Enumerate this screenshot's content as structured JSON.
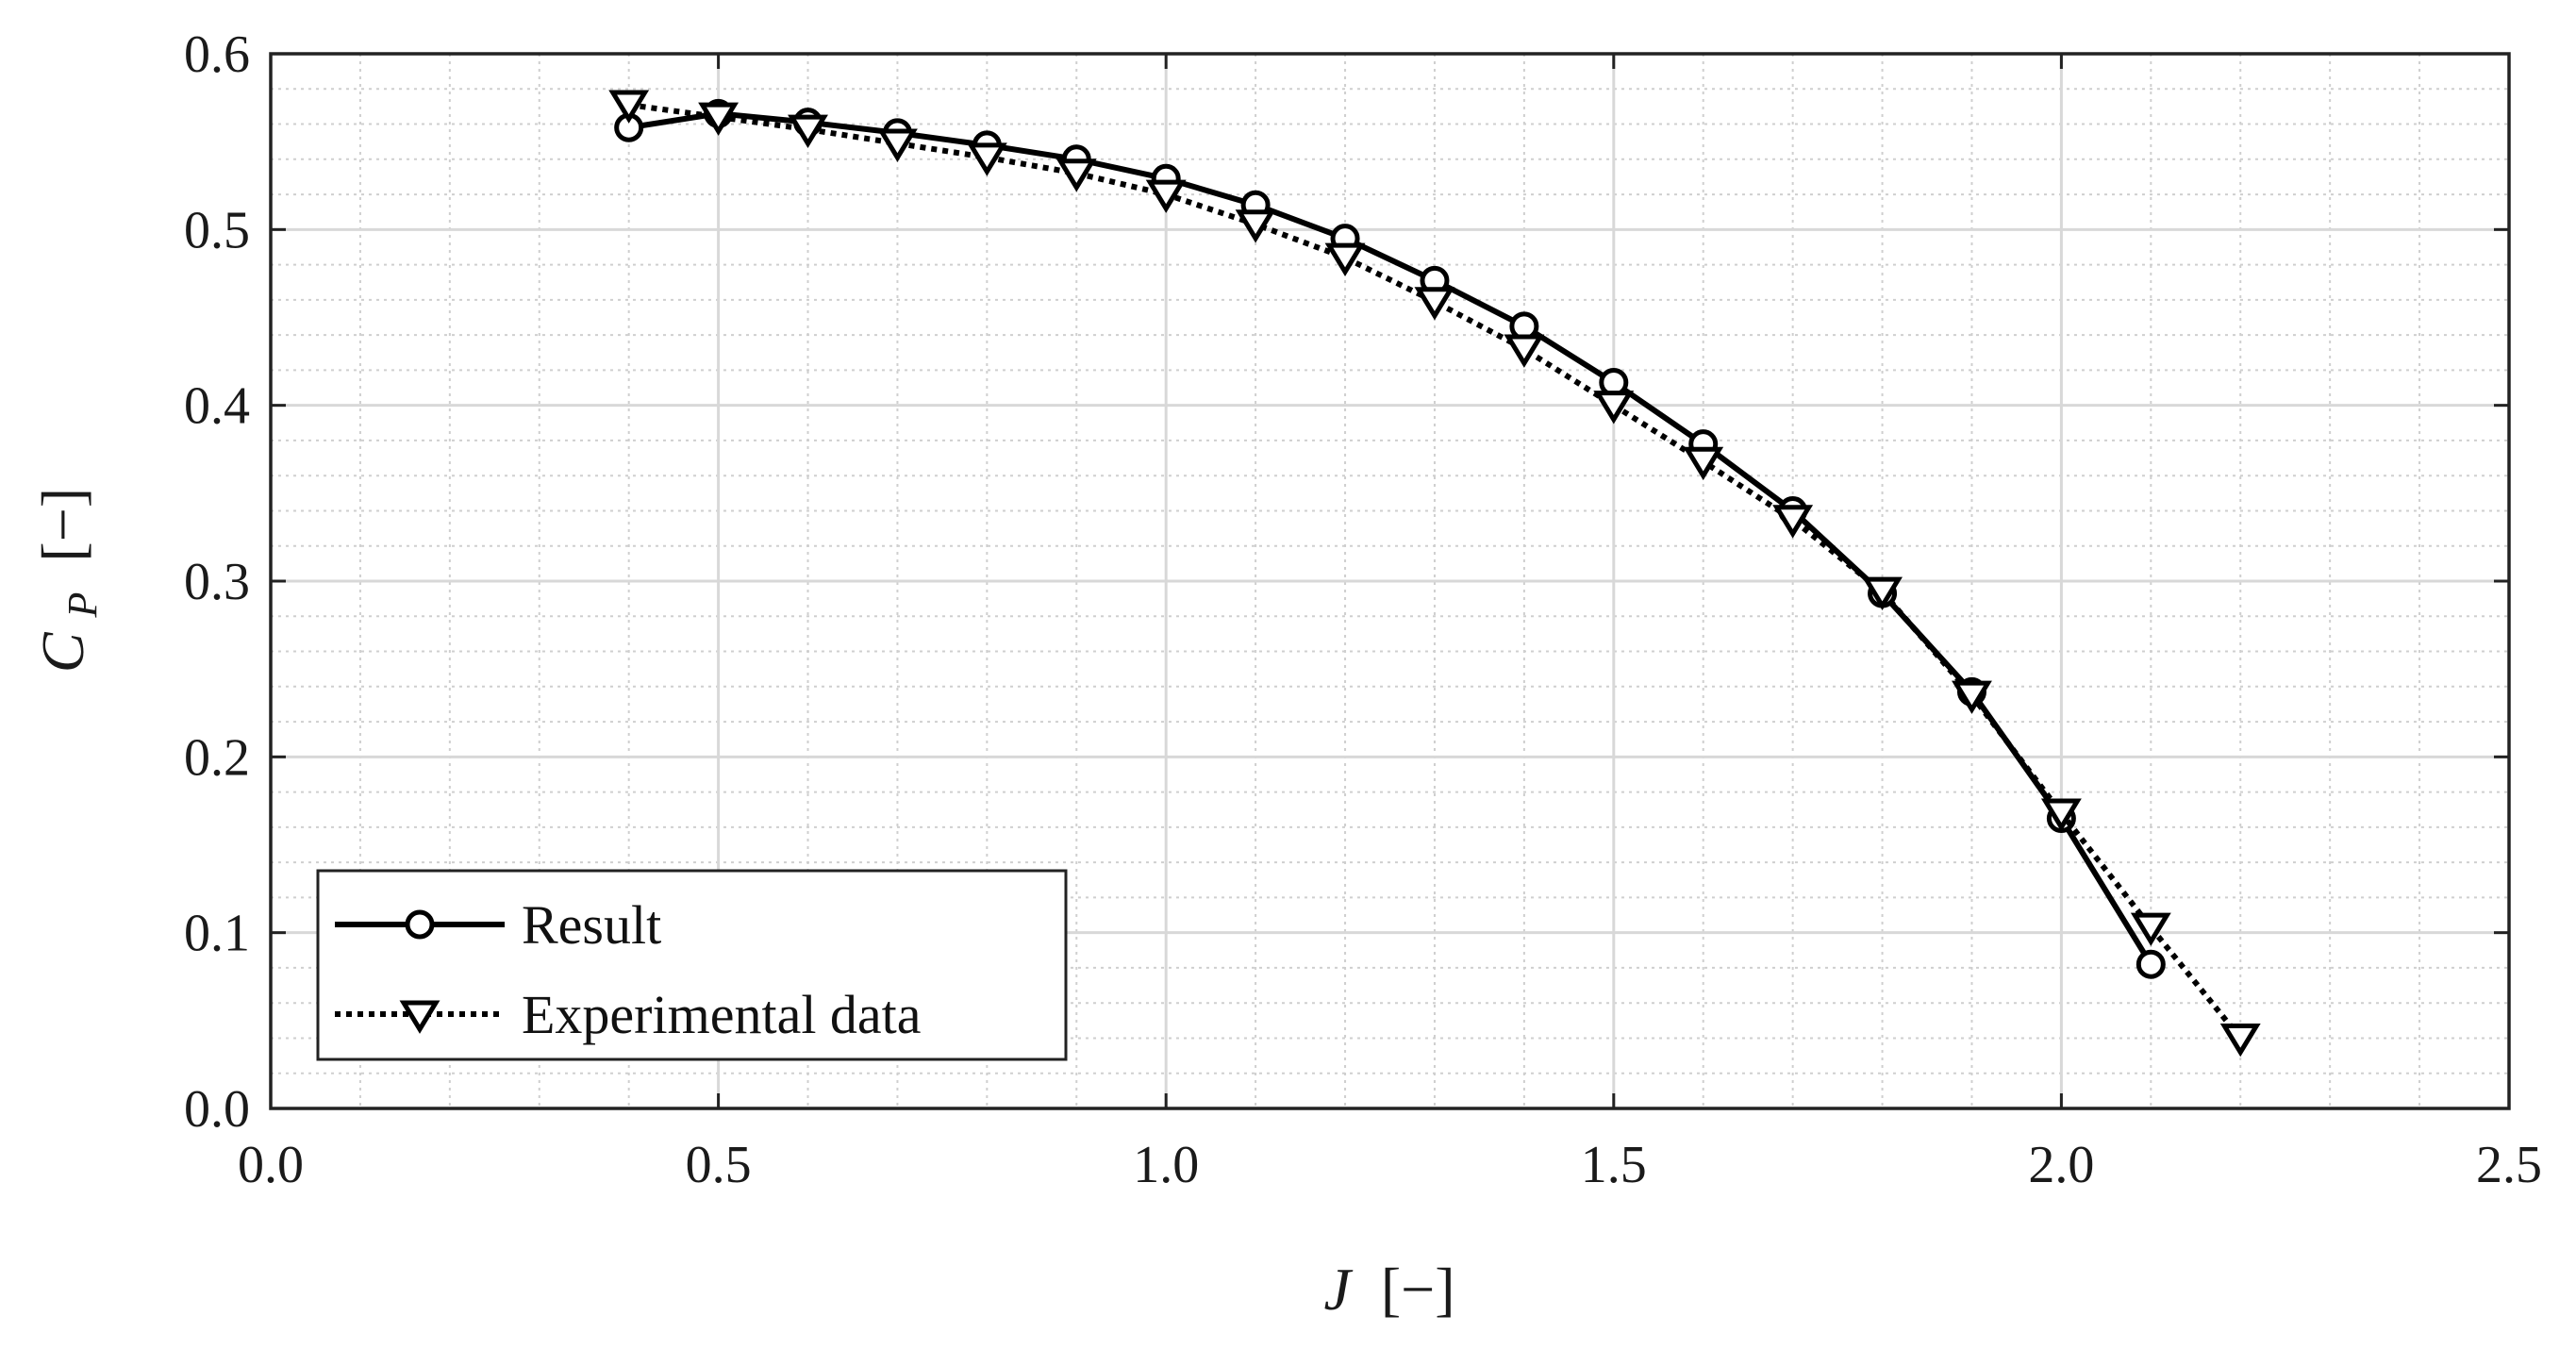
{
  "chart_data": {
    "type": "line",
    "title": "",
    "xlabel": {
      "symbol": "J",
      "unit": "[−]"
    },
    "ylabel": {
      "symbol": "C",
      "subscript": "P",
      "unit": "[−]"
    },
    "xlim": [
      0.0,
      2.5
    ],
    "ylim": [
      0.0,
      0.6
    ],
    "xticks": [
      "0.0",
      "0.5",
      "1.0",
      "1.5",
      "2.0",
      "2.5"
    ],
    "yticks": [
      "0.0",
      "0.1",
      "0.2",
      "0.3",
      "0.4",
      "0.5",
      "0.6"
    ],
    "grid": {
      "major": true,
      "minor": true
    },
    "legend_position": "bottom-left",
    "series": [
      {
        "name": "Result",
        "line_style": "solid",
        "marker": "circle",
        "color": "#000000",
        "x": [
          0.4,
          0.5,
          0.6,
          0.7,
          0.8,
          0.9,
          1.0,
          1.1,
          1.2,
          1.3,
          1.4,
          1.5,
          1.6,
          1.7,
          1.8,
          1.9,
          2.0,
          2.1
        ],
        "y": [
          0.558,
          0.566,
          0.561,
          0.555,
          0.548,
          0.54,
          0.529,
          0.514,
          0.495,
          0.471,
          0.445,
          0.413,
          0.378,
          0.34,
          0.293,
          0.237,
          0.165,
          0.082
        ]
      },
      {
        "name": "Experimental data",
        "line_style": "dotted",
        "marker": "triangle-down",
        "color": "#000000",
        "x": [
          0.4,
          0.5,
          0.6,
          0.7,
          0.8,
          0.9,
          1.0,
          1.1,
          1.2,
          1.3,
          1.4,
          1.5,
          1.6,
          1.7,
          1.8,
          1.9,
          2.0,
          2.1,
          2.2
        ],
        "y": [
          0.571,
          0.564,
          0.557,
          0.549,
          0.541,
          0.532,
          0.52,
          0.503,
          0.484,
          0.459,
          0.432,
          0.4,
          0.368,
          0.335,
          0.294,
          0.235,
          0.168,
          0.103,
          0.04
        ]
      }
    ]
  }
}
